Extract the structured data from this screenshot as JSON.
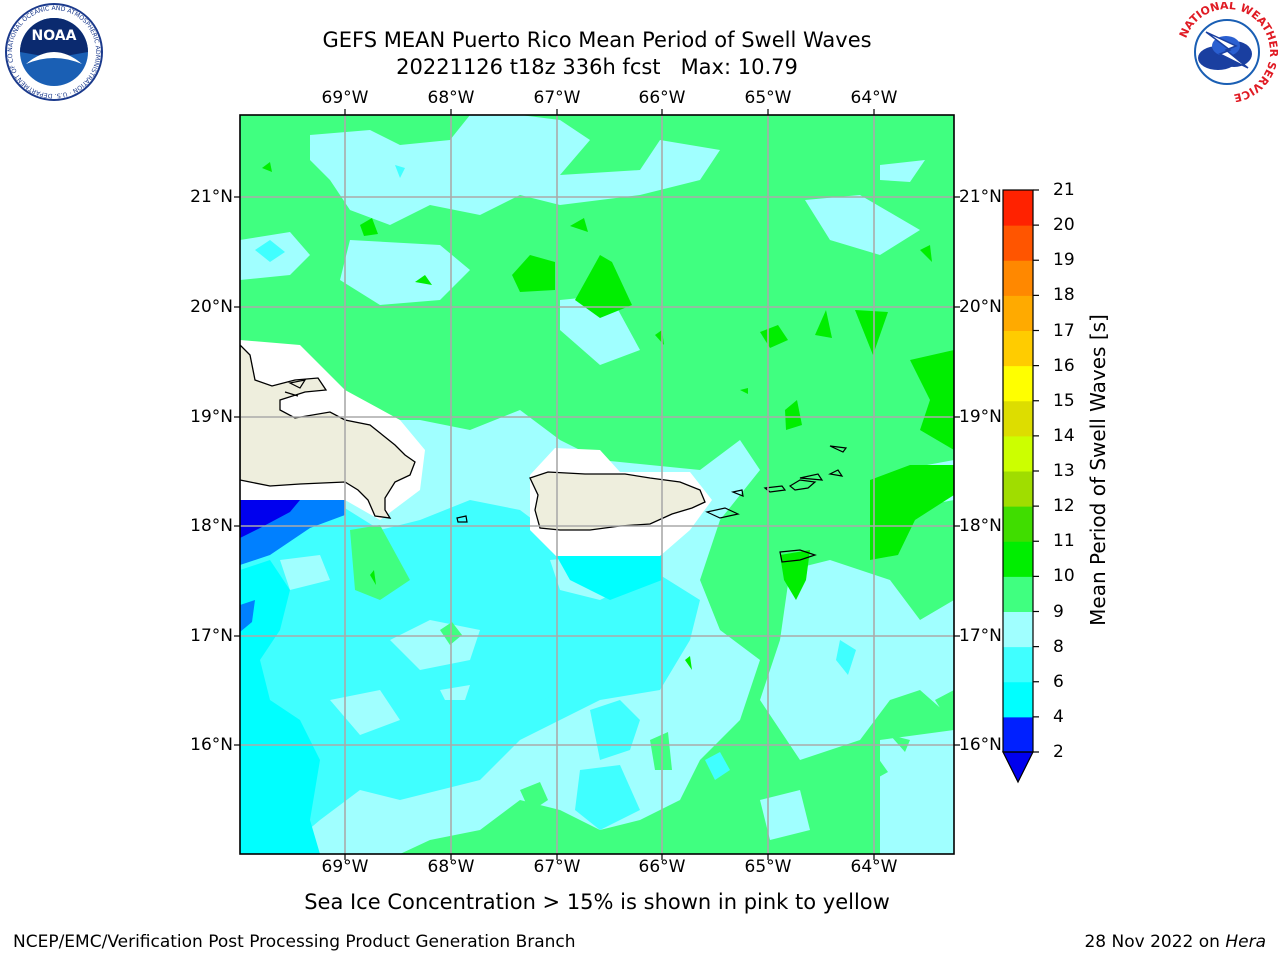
{
  "title": {
    "line1": "GEFS MEAN Puerto Rico Mean Period of Swell Waves",
    "line2": "20221126 t18z 336h fcst   Max: 10.79"
  },
  "map": {
    "lon_labels": [
      "69°W",
      "68°W",
      "67°W",
      "66°W",
      "65°W",
      "64°W"
    ],
    "lat_labels": [
      "21°N",
      "20°N",
      "19°N",
      "18°N",
      "17°N",
      "16°N"
    ],
    "colors": {
      "frame": "#000000",
      "grid": "#aaaaaa",
      "land": "#eeeedd",
      "coast": "#000000",
      "missing": "#ffffff"
    }
  },
  "colorbar": {
    "label": "Mean Period of Swell Waves [s]",
    "ticks": [
      "2",
      "4",
      "6",
      "8",
      "9",
      "10",
      "11",
      "12",
      "13",
      "14",
      "15",
      "16",
      "17",
      "18",
      "19",
      "20",
      "21"
    ],
    "colors": [
      "#0020ff",
      "#00ffff",
      "#40ffff",
      "#a0ffff",
      "#40ff80",
      "#00ee00",
      "#40dd00",
      "#a0dd00",
      "#ccff00",
      "#dddd00",
      "#ffff00",
      "#ffcc00",
      "#ffaa00",
      "#ff8800",
      "#ff5500",
      "#ff2200"
    ],
    "extend_color": "#0000ee"
  },
  "caption": "Sea Ice Concentration > 15% is shown in pink to yellow",
  "footer": {
    "left": "NCEP/EMC/Verification Post Processing Product Generation Branch",
    "right_prefix": "28 Nov 2022 on ",
    "right_host": "Hera"
  },
  "logos": {
    "noaa": {
      "text": "NOAA",
      "ring": "NATIONAL OCEANIC AND ATMOSPHERIC ADMINISTRATION · U.S. DEPARTMENT OF COMMERCE"
    },
    "nws": {
      "text": "NATIONAL WEATHER SERVICE"
    }
  }
}
